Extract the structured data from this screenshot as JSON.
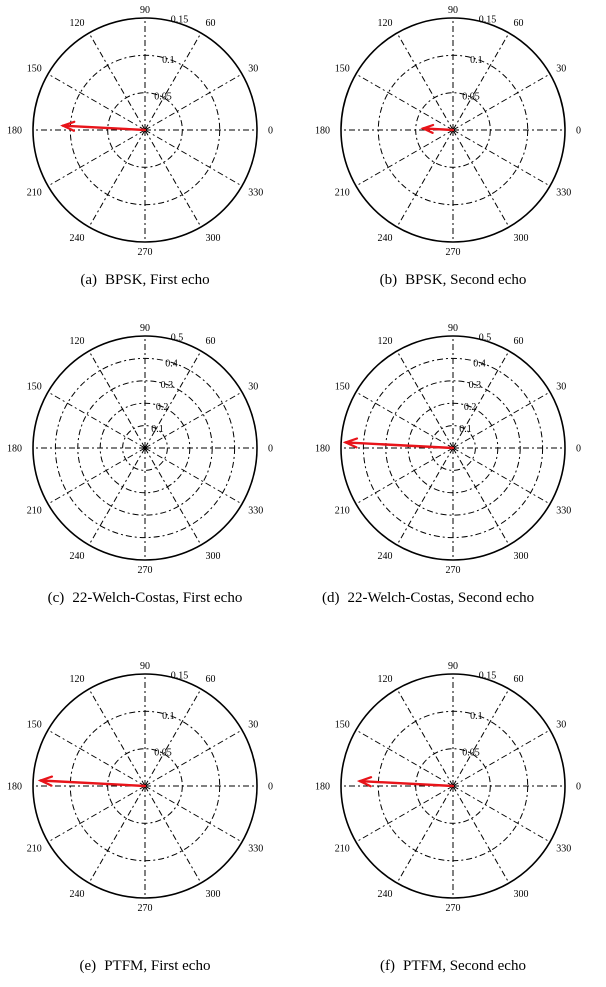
{
  "chart_data": [
    {
      "type": "polar",
      "caption_tag": "(a)",
      "caption": "BPSK, First echo",
      "rings": [
        "0.05",
        "0.1",
        "0.15"
      ],
      "rmax": 0.15,
      "angle_labels": [
        "0",
        "30",
        "60",
        "90",
        "120",
        "150",
        "180",
        "210",
        "240",
        "270",
        "300",
        "330"
      ],
      "vector": {
        "angle": 177,
        "magnitude": 0.11
      },
      "vector_color": "#e8141a"
    },
    {
      "type": "polar",
      "caption_tag": "(b)",
      "caption": "BPSK, Second echo",
      "rings": [
        "0.05",
        "0.1",
        "0.15"
      ],
      "rmax": 0.15,
      "angle_labels": [
        "0",
        "30",
        "60",
        "90",
        "120",
        "150",
        "180",
        "210",
        "240",
        "270",
        "300",
        "330"
      ],
      "vector": {
        "angle": 177,
        "magnitude": 0.04
      },
      "vector_color": "#e8141a"
    },
    {
      "type": "polar",
      "caption_tag": "(c)",
      "caption": "22-Welch-Costas, First echo",
      "rings": [
        "0.1",
        "0.2",
        "0.3",
        "0.4",
        "0.5"
      ],
      "rmax": 0.5,
      "angle_labels": [
        "0",
        "30",
        "60",
        "90",
        "120",
        "150",
        "180",
        "210",
        "240",
        "270",
        "300",
        "330"
      ],
      "vector": null,
      "vector_color": "#e8141a"
    },
    {
      "type": "polar",
      "caption_tag": "(d)",
      "caption": "22-Welch-Costas, Second echo",
      "rings": [
        "0.1",
        "0.2",
        "0.3",
        "0.4",
        "0.5"
      ],
      "rmax": 0.5,
      "angle_labels": [
        "0",
        "30",
        "60",
        "90",
        "120",
        "150",
        "180",
        "210",
        "240",
        "270",
        "300",
        "330"
      ],
      "vector": {
        "angle": 177,
        "magnitude": 0.48
      },
      "vector_color": "#e8141a"
    },
    {
      "type": "polar",
      "caption_tag": "(e)",
      "caption": "PTFM, First echo",
      "rings": [
        "0.05",
        "0.1",
        "0.15"
      ],
      "rmax": 0.15,
      "angle_labels": [
        "0",
        "30",
        "60",
        "90",
        "120",
        "150",
        "180",
        "210",
        "240",
        "270",
        "300",
        "330"
      ],
      "vector": {
        "angle": 177,
        "magnitude": 0.14
      },
      "vector_color": "#e8141a"
    },
    {
      "type": "polar",
      "caption_tag": "(f)",
      "caption": "PTFM, Second echo",
      "rings": [
        "0.05",
        "0.1",
        "0.15"
      ],
      "rmax": 0.15,
      "angle_labels": [
        "0",
        "30",
        "60",
        "90",
        "120",
        "150",
        "180",
        "210",
        "240",
        "270",
        "300",
        "330"
      ],
      "vector": {
        "angle": 177,
        "magnitude": 0.125
      },
      "vector_color": "#e8141a"
    }
  ]
}
